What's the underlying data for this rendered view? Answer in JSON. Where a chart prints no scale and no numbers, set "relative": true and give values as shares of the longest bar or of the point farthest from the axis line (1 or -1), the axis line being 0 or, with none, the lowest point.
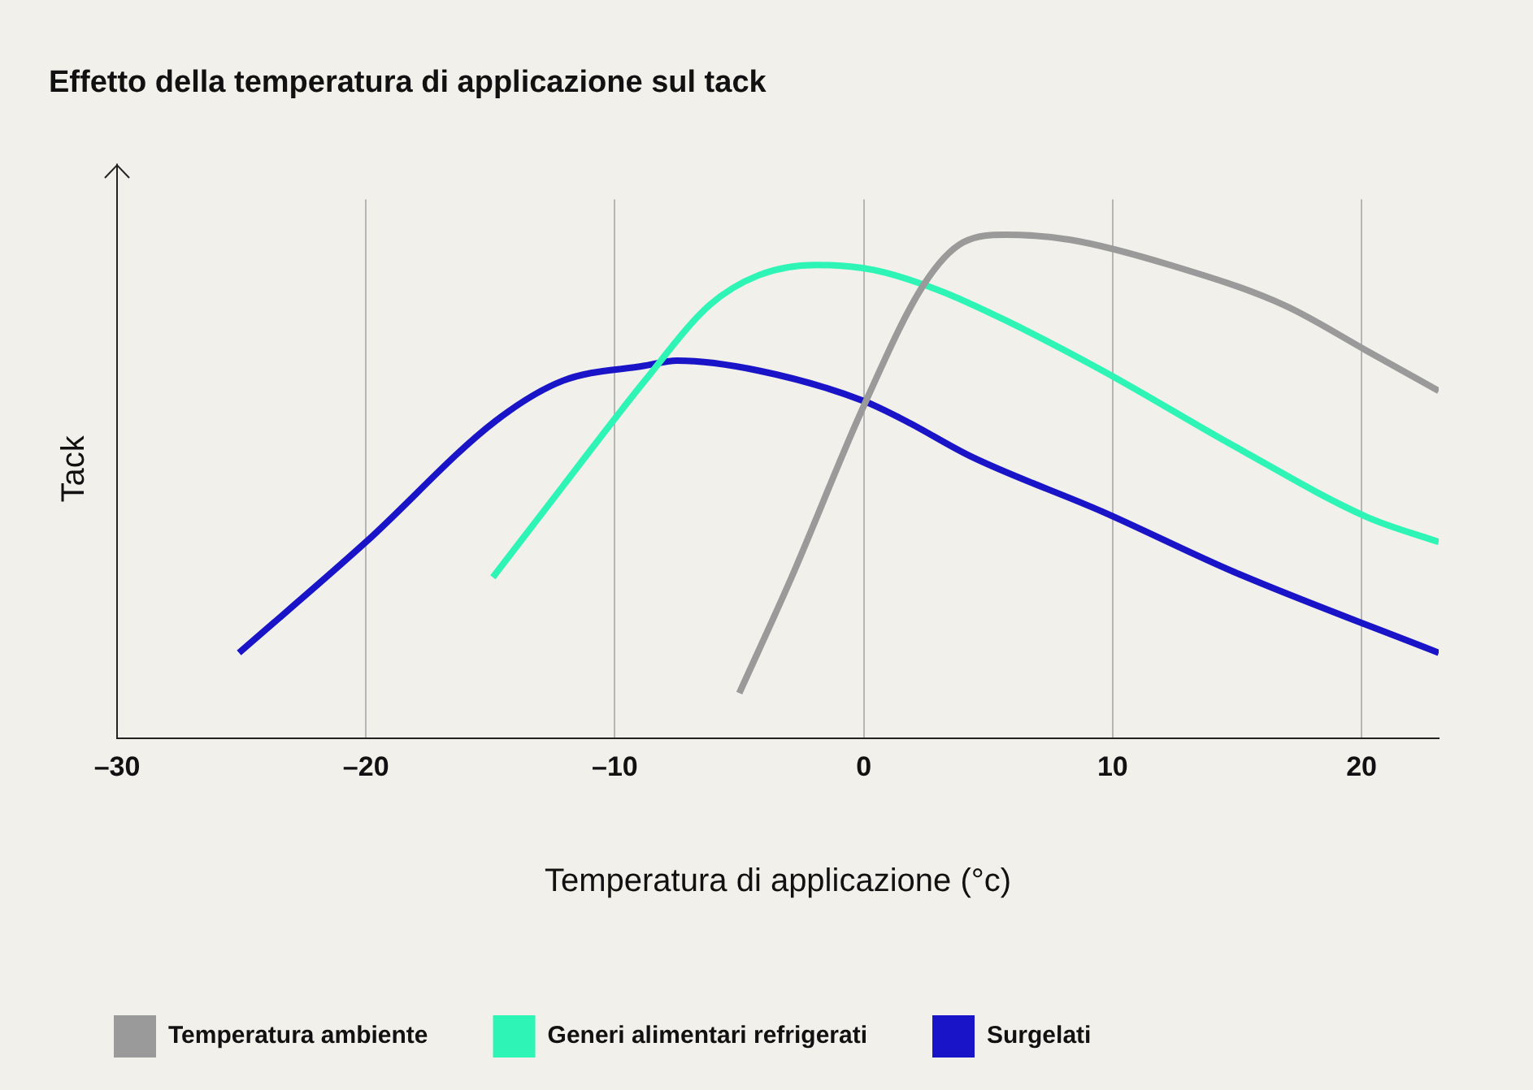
{
  "chart_data": {
    "type": "line",
    "title": "Effetto della temperatura di applicazione sul tack",
    "xlabel": "Temperatura di applicazione (°c)",
    "ylabel": "Tack",
    "relative": true,
    "xlim": [
      -30,
      23.1
    ],
    "xticks": [
      {
        "value": -30,
        "label": "–30"
      },
      {
        "value": -20,
        "label": "–20"
      },
      {
        "value": -10,
        "label": "–10"
      },
      0,
      10,
      20
    ],
    "grid": "x",
    "legend": "bottom left",
    "marker": "none",
    "line_style": "solid",
    "series": [
      {
        "name": "Temperatura ambiente",
        "color": "#9a9a9a",
        "x": [
          -5,
          -2.9,
          0,
          2.4,
          4,
          5.7,
          8.3,
          12.3,
          16.9,
          20.2,
          23.1
        ],
        "values": [
          0.09,
          0.32,
          0.66,
          0.9,
          0.985,
          1,
          0.99,
          0.94,
          0.86,
          0.77,
          0.69
        ]
      },
      {
        "name": "Generi alimentari refrigerati",
        "color": "#2ef5b5",
        "x": [
          -14.9,
          -12.1,
          -8.8,
          -6.2,
          -4.2,
          -1.9,
          0.4,
          3,
          5.7,
          9.6,
          14.9,
          20.2,
          23.1
        ],
        "values": [
          0.32,
          0.5,
          0.71,
          0.86,
          0.92,
          0.94,
          0.93,
          0.89,
          0.83,
          0.73,
          0.58,
          0.44,
          0.39
        ]
      },
      {
        "name": "Surgelati",
        "color": "#1a14c8",
        "x": [
          -25.1,
          -20,
          -14.8,
          -12.1,
          -8.8,
          -7.5,
          -4.2,
          0,
          1.7,
          4.3,
          9.6,
          14.9,
          23.1
        ],
        "values": [
          0.17,
          0.39,
          0.63,
          0.71,
          0.74,
          0.75,
          0.73,
          0.67,
          0.63,
          0.56,
          0.45,
          0.33,
          0.17
        ]
      }
    ]
  }
}
